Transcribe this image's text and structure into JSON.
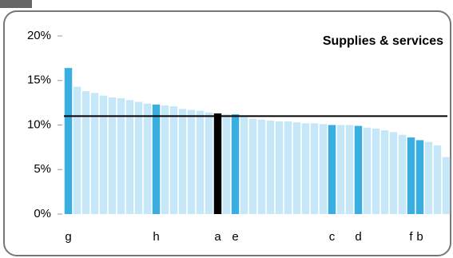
{
  "chart_data": {
    "type": "bar",
    "title": "Supplies & services",
    "categories": [
      "g",
      null,
      null,
      null,
      null,
      null,
      null,
      null,
      null,
      null,
      "h",
      null,
      null,
      null,
      null,
      null,
      null,
      "a",
      null,
      "e",
      null,
      null,
      null,
      null,
      null,
      null,
      null,
      null,
      null,
      null,
      "c",
      null,
      null,
      "d",
      null,
      null,
      null,
      null,
      null,
      "f",
      "b",
      null,
      null,
      null
    ],
    "values": [
      16.4,
      14.3,
      13.8,
      13.6,
      13.3,
      13.1,
      13.0,
      12.8,
      12.6,
      12.4,
      12.3,
      12.2,
      12.1,
      11.8,
      11.7,
      11.6,
      11.4,
      11.3,
      11.2,
      11.2,
      10.9,
      10.7,
      10.6,
      10.5,
      10.4,
      10.4,
      10.3,
      10.2,
      10.2,
      10.1,
      10.0,
      10.0,
      10.0,
      9.9,
      9.7,
      9.6,
      9.4,
      9.2,
      8.9,
      8.6,
      8.3,
      8.1,
      7.7,
      6.4
    ],
    "colors": [
      "#3aaee0",
      "#c6e7f7",
      "#c6e7f7",
      "#c6e7f7",
      "#c6e7f7",
      "#c6e7f7",
      "#c6e7f7",
      "#c6e7f7",
      "#c6e7f7",
      "#c6e7f7",
      "#3aaee0",
      "#c6e7f7",
      "#c6e7f7",
      "#c6e7f7",
      "#c6e7f7",
      "#c6e7f7",
      "#c6e7f7",
      "#000000",
      "#c6e7f7",
      "#3aaee0",
      "#c6e7f7",
      "#c6e7f7",
      "#c6e7f7",
      "#c6e7f7",
      "#c6e7f7",
      "#c6e7f7",
      "#c6e7f7",
      "#c6e7f7",
      "#c6e7f7",
      "#c6e7f7",
      "#3aaee0",
      "#c6e7f7",
      "#c6e7f7",
      "#3aaee0",
      "#c6e7f7",
      "#c6e7f7",
      "#c6e7f7",
      "#c6e7f7",
      "#c6e7f7",
      "#3aaee0",
      "#3aaee0",
      "#c6e7f7",
      "#c6e7f7",
      "#c6e7f7"
    ],
    "reference_line": 11,
    "ylim": [
      0,
      20
    ],
    "yticks": [
      {
        "value": 0,
        "label": "0%"
      },
      {
        "value": 5,
        "label": "5%"
      },
      {
        "value": 10,
        "label": "10%"
      },
      {
        "value": 15,
        "label": "15%"
      },
      {
        "value": 20,
        "label": "20%"
      }
    ]
  }
}
